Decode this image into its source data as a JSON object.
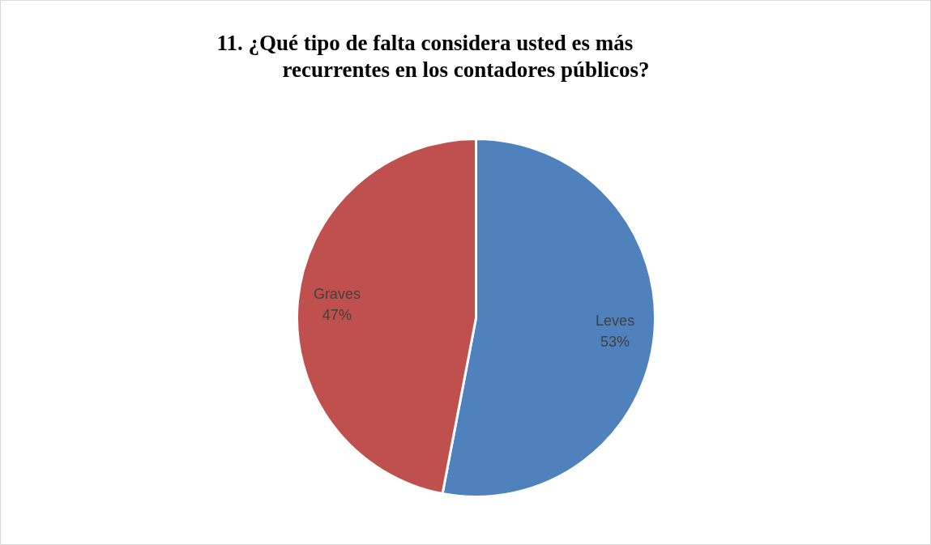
{
  "chart_data": {
    "type": "pie",
    "title": "11.                ¿Qué tipo de falta considera usted es más recurrentes en los contadores públicos?",
    "categories": [
      "Leves",
      "Graves"
    ],
    "values": [
      53,
      47
    ],
    "colors": [
      "#4f81bd",
      "#c0504d"
    ],
    "value_labels": [
      "53%",
      "47%"
    ]
  }
}
